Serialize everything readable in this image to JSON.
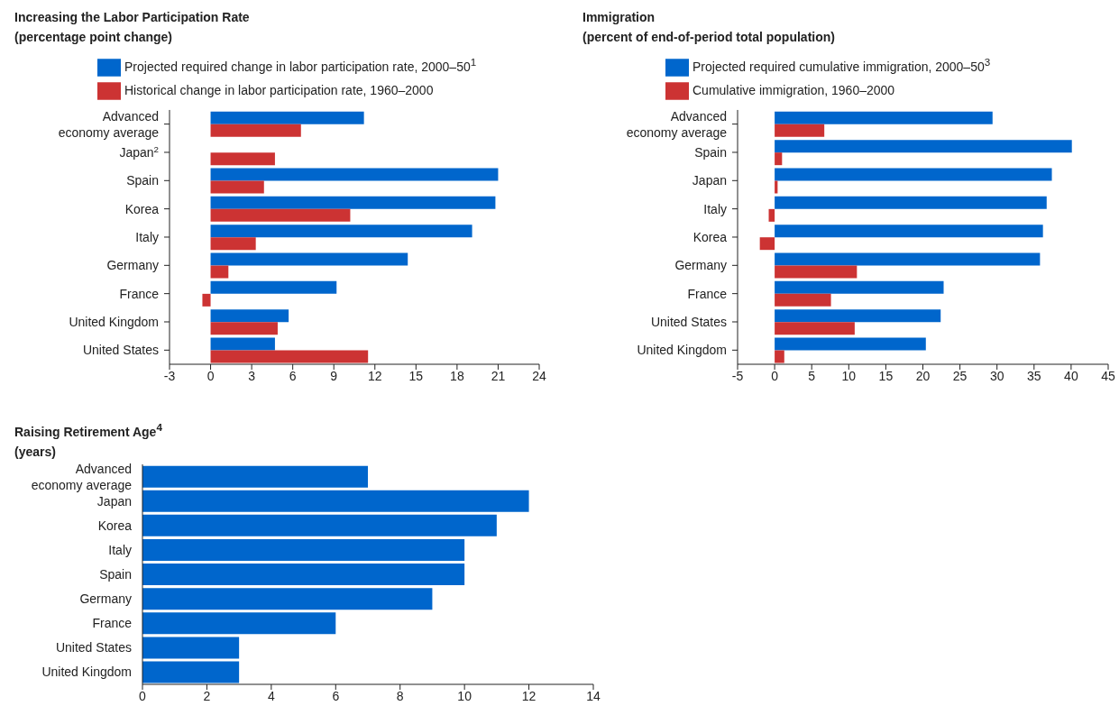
{
  "chart_data": [
    {
      "type": "bar",
      "orientation": "horizontal",
      "title": "Increasing the Labor Participation Rate",
      "subtitle": "(percentage point change)",
      "categories": [
        "Advanced economy average",
        "Japan$^{2}$",
        "Spain",
        "Korea",
        "Italy",
        "Germany",
        "France",
        "United Kingdom",
        "United States"
      ],
      "series": [
        {
          "name": "Projected required change in labor participation rate, 2000–50$^{1}$",
          "color": "#0066cc",
          "values": [
            11.2,
            null,
            21.0,
            20.8,
            19.1,
            14.4,
            9.2,
            5.7,
            4.7
          ]
        },
        {
          "name": "Historical change in labor participation rate, 1960–2000",
          "color": "#cc3333",
          "values": [
            6.6,
            4.7,
            3.9,
            10.2,
            3.3,
            1.3,
            -0.6,
            4.9,
            11.5
          ]
        }
      ],
      "xlim": [
        -3,
        24
      ],
      "xticks": [
        -3,
        0,
        3,
        6,
        9,
        12,
        15,
        18,
        21,
        24
      ],
      "legend": "top"
    },
    {
      "type": "bar",
      "orientation": "horizontal",
      "title": "Immigration",
      "subtitle": "(percent of end-of-period total population)",
      "categories": [
        "Advanced economy average",
        "Spain",
        "Japan",
        "Italy",
        "Korea",
        "Germany",
        "France",
        "United States",
        "United Kingdom"
      ],
      "series": [
        {
          "name": "Projected required cumulative immigration, 2000–50$^{3}$",
          "color": "#0066cc",
          "values": [
            29.4,
            40.1,
            37.4,
            36.7,
            36.2,
            35.8,
            22.8,
            22.4,
            20.4
          ]
        },
        {
          "name": "Cumulative immigration, 1960–2000",
          "color": "#cc3333",
          "values": [
            6.7,
            1.0,
            0.4,
            -0.8,
            -2.0,
            11.1,
            7.6,
            10.8,
            1.3
          ]
        }
      ],
      "xlim": [
        -5,
        45
      ],
      "xticks": [
        -5,
        0,
        5,
        10,
        15,
        20,
        25,
        30,
        35,
        40,
        45
      ],
      "legend": "top"
    },
    {
      "type": "bar",
      "orientation": "horizontal",
      "title": "Raising Retirement Age$^{4}$",
      "subtitle": "(years)",
      "categories": [
        "Advanced economy average",
        "Japan",
        "Korea",
        "Italy",
        "Spain",
        "Germany",
        "France",
        "United States",
        "United Kingdom"
      ],
      "values": [
        7,
        12,
        11,
        10,
        10,
        9,
        6,
        3,
        3
      ],
      "color": "#0066cc",
      "xlim": [
        0,
        14
      ],
      "xticks": [
        0,
        2,
        4,
        6,
        8,
        10,
        12,
        14
      ],
      "legend": false
    }
  ]
}
